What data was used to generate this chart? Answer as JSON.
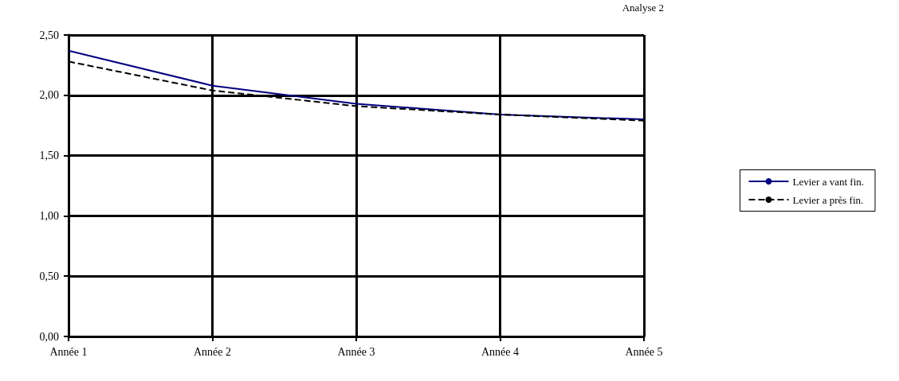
{
  "chart_data": {
    "type": "line",
    "title": "Analyse 2",
    "categories": [
      "Année 1",
      "Année 2",
      "Année 3",
      "Année 4",
      "Année 5"
    ],
    "series": [
      {
        "name": "Levier a vant fin.",
        "color": "#000080",
        "values": [
          2.37,
          2.08,
          1.93,
          1.84,
          1.8
        ],
        "line_style": "solid"
      },
      {
        "name": "Levier a près fin.",
        "color": "#000000",
        "values": [
          2.28,
          2.04,
          1.91,
          1.84,
          1.79
        ],
        "line_style": "dashed"
      }
    ],
    "ylim": [
      0,
      2.5
    ],
    "yticks": [
      {
        "value": 0,
        "label": "0,00"
      },
      {
        "value": 0.5,
        "label": "0,50"
      },
      {
        "value": 1,
        "label": "1,00"
      },
      {
        "value": 1.5,
        "label": "1,50"
      },
      {
        "value": 2,
        "label": "2,00"
      },
      {
        "value": 2.5,
        "label": "2,50"
      }
    ],
    "grid": true,
    "legend": "right",
    "marker": "none"
  }
}
